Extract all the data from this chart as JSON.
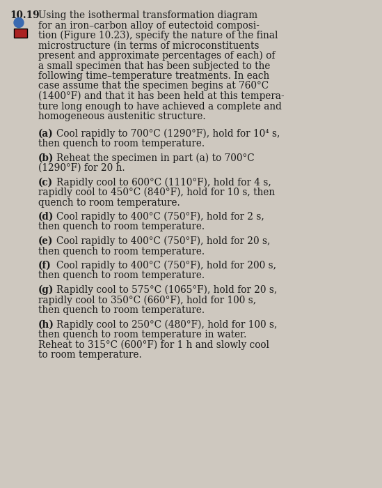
{
  "bg_color": "#cec8bf",
  "text_color": "#1a1a1a",
  "icon_plus_color": "#3a6ab0",
  "icon_ss_bg": "#aa2222",
  "icon_ss_text": "#ffffff",
  "lines_header": [
    [
      "bold",
      "10.19 ",
      "normal",
      "Using the isothermal transformation diagram"
    ],
    [
      "normal",
      "    for an iron–carbon alloy of eutectoid composi-"
    ],
    [
      "normal",
      "    tion (Figure 10.23), specify the nature of the final"
    ],
    [
      "normal",
      "    microstructure (in terms of microconstituents"
    ],
    [
      "normal",
      "    present and approximate percentages of each) of"
    ],
    [
      "normal",
      "    a small specimen that has been subjected to the"
    ],
    [
      "normal",
      "    following time–temperature treatments. In each"
    ],
    [
      "normal",
      "    case assume that the specimen begins at 760°C"
    ],
    [
      "normal",
      "    (1400°F) and that it has been held at this tempera-"
    ],
    [
      "normal",
      "    ture long enough to have achieved a complete and"
    ],
    [
      "normal",
      "    homogeneous austenitic structure."
    ]
  ],
  "parts": [
    {
      "label": "(a)",
      "lines": [
        "Cool rapidly to 700°C (1290°F), hold for 10⁴ s,",
        "then quench to room temperature."
      ]
    },
    {
      "label": "(b)",
      "lines": [
        "Reheat the specimen in part (a) to 700°C",
        "(1290°F) for 20 h."
      ]
    },
    {
      "label": "(c)",
      "lines": [
        "Rapidly cool to 600°C (1110°F), hold for 4 s,",
        "rapidly cool to 450°C (840°F), hold for 10 s, then",
        "quench to room temperature."
      ]
    },
    {
      "label": "(d)",
      "lines": [
        "Cool rapidly to 400°C (750°F), hold for 2 s,",
        "then quench to room temperature."
      ]
    },
    {
      "label": "(e)",
      "lines": [
        "Cool rapidly to 400°C (750°F), hold for 20 s,",
        "then quench to room temperature."
      ]
    },
    {
      "label": "(f)",
      "lines": [
        "Cool rapidly to 400°C (750°F), hold for 200 s,",
        "then quench to room temperature."
      ]
    },
    {
      "label": "(g)",
      "lines": [
        "Rapidly cool to 575°C (1065°F), hold for 20 s,",
        "rapidly cool to 350°C (660°F), hold for 100 s,",
        "then quench to room temperature."
      ]
    },
    {
      "label": "(h)",
      "lines": [
        "Rapidly cool to 250°C (480°F), hold for 100 s,",
        "then quench to room temperature in water.",
        "Reheat to 315°C (600°F) for 1 h and slowly cool",
        "to room temperature."
      ]
    }
  ]
}
